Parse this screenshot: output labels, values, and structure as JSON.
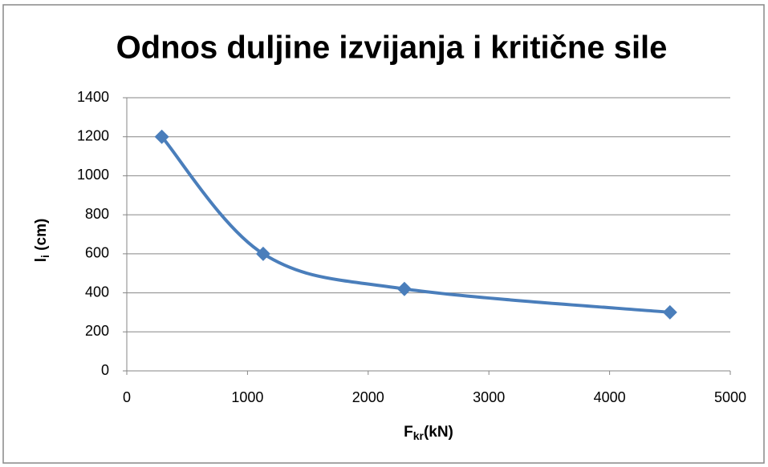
{
  "chart_data": {
    "type": "line",
    "title": "Odnos duljine izvijanja i kritične sile",
    "xlabel": [
      "F",
      "kr",
      "(kN)"
    ],
    "ylabel": [
      "l",
      "i",
      " (cm)"
    ],
    "x": [
      290,
      1130,
      2300,
      4500
    ],
    "series": [
      {
        "color": "#4a7ebb",
        "values": [
          1200,
          600,
          420,
          300
        ]
      }
    ],
    "smooth": true,
    "marker": "diamond",
    "xlim": [
      0,
      5000
    ],
    "xticks": [
      0,
      1000,
      2000,
      3000,
      4000,
      5000
    ],
    "ylim": [
      0,
      1400
    ],
    "yticks": [
      0,
      200,
      400,
      600,
      800,
      1000,
      1200,
      1400
    ],
    "grid": true
  }
}
